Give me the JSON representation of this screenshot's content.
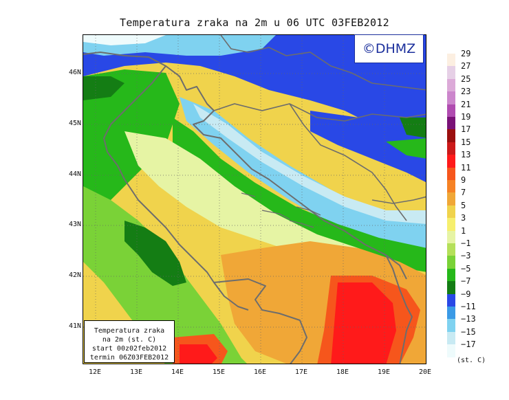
{
  "title": "Temperatura zraka na 2m u 06 UTC 03FEB2012",
  "logo": "©DHMZ",
  "infobox": {
    "line1": "Temperatura zraka",
    "line2": "na 2m (st. C)",
    "line3": "start 00z02feb2012",
    "line4": "termin 06Z03FEB2012"
  },
  "lat_labels": [
    "46N",
    "45N",
    "44N",
    "43N",
    "42N",
    "41N"
  ],
  "lon_labels": [
    "12E",
    "13E",
    "14E",
    "15E",
    "16E",
    "17E",
    "18E",
    "19E",
    "20E"
  ],
  "legend": {
    "units": "(st. C)",
    "ticks": [
      "29",
      "27",
      "25",
      "23",
      "21",
      "19",
      "17",
      "15",
      "13",
      "11",
      "9",
      "7",
      "5",
      "3",
      "1",
      "−1",
      "−3",
      "−5",
      "−7",
      "−9",
      "−11",
      "−13",
      "−15",
      "−17"
    ],
    "colors": [
      "#fcefe1",
      "#e6d0e6",
      "#dcaad8",
      "#cc86cc",
      "#b04cb0",
      "#7a1277",
      "#9b0f0f",
      "#cc1a1a",
      "#ff1a1a",
      "#f6561c",
      "#f68225",
      "#f0a737",
      "#f0d34c",
      "#f6ef6e",
      "#e6f4a4",
      "#b5e05a",
      "#7ad237",
      "#26b81a",
      "#147d14",
      "#2948e6",
      "#3a9ae6",
      "#7fd2f0",
      "#c8eaf3",
      "#eefbfc"
    ]
  },
  "map": {
    "variable": "2 m air temperature",
    "region": "Adriatic / Croatia",
    "lat_range": [
      40.3,
      46.8
    ],
    "lon_range": [
      11.7,
      20.0
    ]
  }
}
